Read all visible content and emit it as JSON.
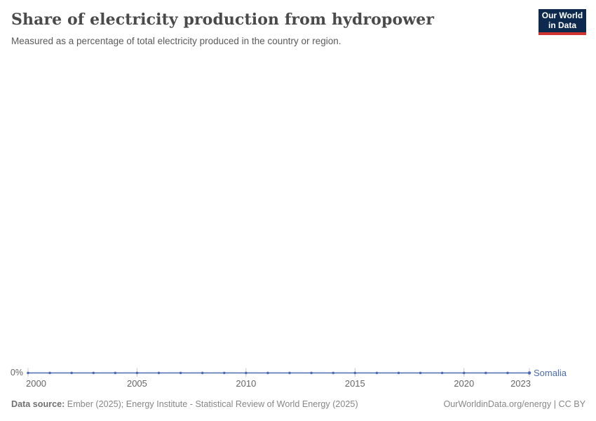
{
  "header": {
    "title": "Share of electricity production from hydropower",
    "subtitle": "Measured as a percentage of total electricity produced in the country or region.",
    "logo": {
      "line1": "Our World",
      "line2": "in Data"
    }
  },
  "chart": {
    "y_tick_label": "0%",
    "x_ticks": [
      {
        "year": 2000,
        "label": "2000"
      },
      {
        "year": 2005,
        "label": "2005"
      },
      {
        "year": 2010,
        "label": "2010"
      },
      {
        "year": 2015,
        "label": "2015"
      },
      {
        "year": 2020,
        "label": "2020"
      },
      {
        "year": 2023,
        "label": "2023"
      }
    ],
    "series_label": "Somalia",
    "line_color": "#4C6BAE",
    "tick_color": "#c9c9c9"
  },
  "chart_data": {
    "type": "line",
    "title": "Share of electricity production from hydropower",
    "subtitle": "Measured as a percentage of total electricity produced in the country or region.",
    "x": [
      2000,
      2001,
      2002,
      2003,
      2004,
      2005,
      2006,
      2007,
      2008,
      2009,
      2010,
      2011,
      2012,
      2013,
      2014,
      2015,
      2016,
      2017,
      2018,
      2019,
      2020,
      2021,
      2022,
      2023
    ],
    "series": [
      {
        "name": "Somalia",
        "values": [
          0,
          0,
          0,
          0,
          0,
          0,
          0,
          0,
          0,
          0,
          0,
          0,
          0,
          0,
          0,
          0,
          0,
          0,
          0,
          0,
          0,
          0,
          0,
          0
        ]
      }
    ],
    "xlabel": "",
    "ylabel": "",
    "xlim": [
      2000,
      2023
    ],
    "ylim": [
      0,
      1
    ],
    "yticks": [
      0
    ],
    "ytick_labels": [
      "0%"
    ],
    "grid": false,
    "legend_position": "end-of-line",
    "marker": "point-per-year"
  },
  "footer": {
    "source_label": "Data source:",
    "source_text": " Ember (2025); Energy Institute - Statistical Review of World Energy (2025)",
    "right_text": "OurWorldinData.org/energy | CC BY"
  }
}
